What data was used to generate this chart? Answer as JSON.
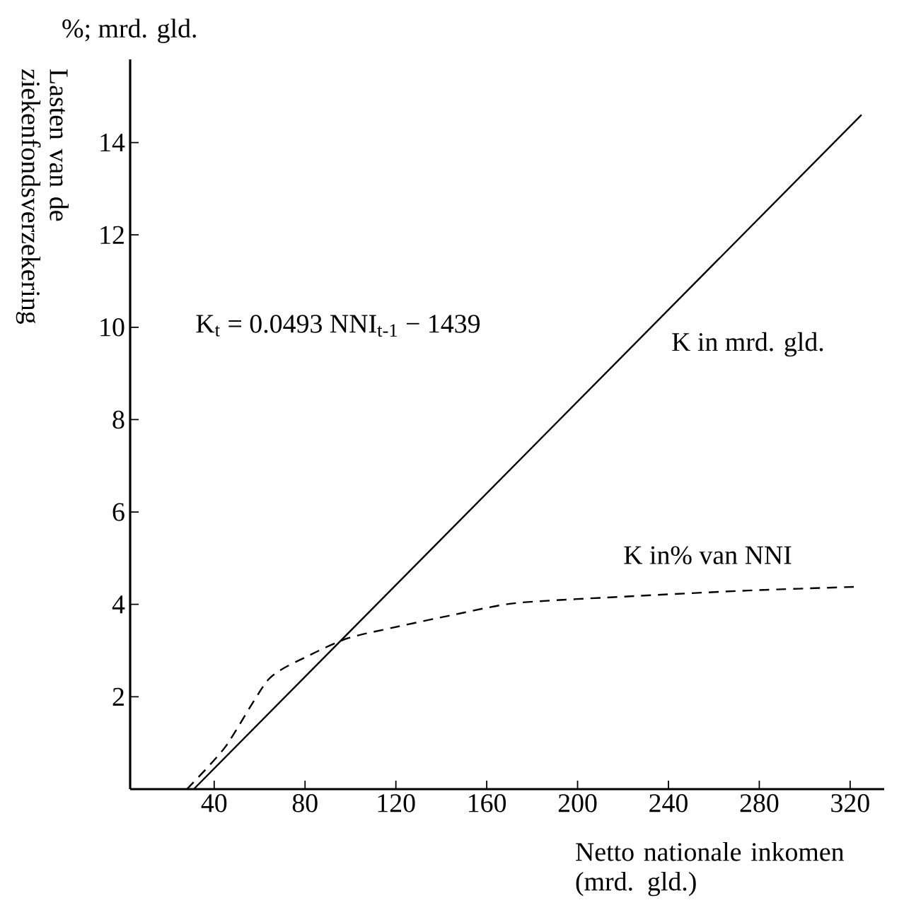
{
  "chart_data": {
    "type": "line",
    "xlabel": "Netto nationale inkomen (mrd. gld.)",
    "ylabel": "Lasten van de ziekenfondsverzekering",
    "annotations": [
      "%; mrd. gld.",
      "K$_{t}$ = 0.0493 NNI$_{t-1}$ − 1439"
    ],
    "series": [
      {
        "name": "K in mrd. gld.",
        "color": "#000000",
        "line_style": "solid",
        "x": [
          31,
          325
        ],
        "values": [
          0,
          14.6
        ]
      },
      {
        "name": "K in% van NNI",
        "color": "#000000",
        "line_style": "dashed",
        "x": [
          28,
          45,
          64,
          82,
          99,
          119,
          144,
          173,
          225,
          275,
          322
        ],
        "values": [
          0,
          0.92,
          2.38,
          2.9,
          3.27,
          3.5,
          3.76,
          4.03,
          4.18,
          4.3,
          4.38
        ]
      }
    ],
    "xlim": [
      3,
      335
    ],
    "xticks": [
      40,
      80,
      120,
      160,
      200,
      240,
      280,
      320
    ],
    "ylim": [
      0,
      15.8
    ],
    "yticks": [
      2,
      4,
      6,
      8,
      10,
      12,
      14
    ],
    "grid": false,
    "legend": false,
    "marker": "none"
  }
}
